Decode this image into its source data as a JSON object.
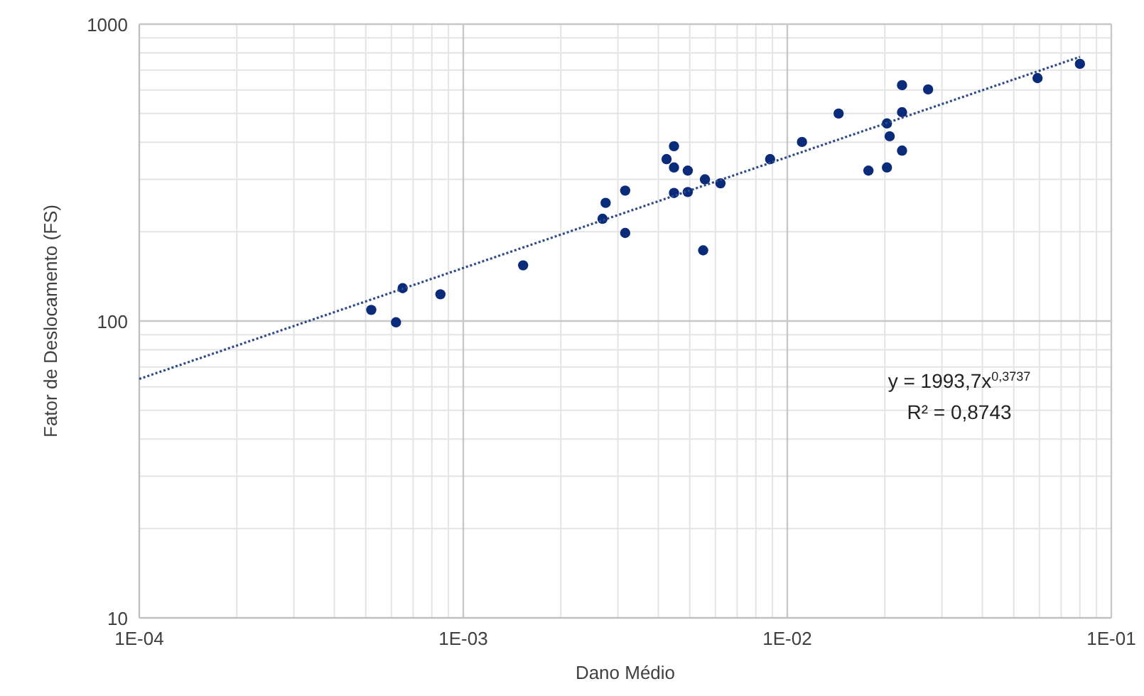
{
  "chart_data": {
    "type": "scatter",
    "xlabel": "Dano Médio",
    "ylabel": "Fator de Deslocamento (FS)",
    "log": "xy",
    "grid": true,
    "xlim": [
      0.0001,
      0.1
    ],
    "ylim": [
      10,
      1000
    ],
    "xticks": [
      {
        "value": 0.0001,
        "label": "1E-04"
      },
      {
        "value": 0.001,
        "label": "1E-03"
      },
      {
        "value": 0.01,
        "label": "1E-02"
      },
      {
        "value": 0.1,
        "label": "1E-01"
      }
    ],
    "yticks": [
      10,
      100,
      1000
    ],
    "series": [
      {
        "color": "#0a2a7a",
        "marker": "circle",
        "x": [
          0.00052,
          0.00062,
          0.00065,
          0.00085,
          0.00153,
          0.00269,
          0.00275,
          0.00316,
          0.00316,
          0.00424,
          0.00447,
          0.00447,
          0.00447,
          0.00493,
          0.00493,
          0.00557,
          0.0055,
          0.00622,
          0.00885,
          0.0111,
          0.0144,
          0.0178,
          0.0203,
          0.0203,
          0.0207,
          0.0226,
          0.0226,
          0.0226,
          0.0272,
          0.0592,
          0.08
        ],
        "values": [
          109,
          99,
          129,
          123,
          154,
          221,
          250,
          198,
          275,
          351,
          388,
          329,
          270,
          321,
          272,
          300,
          173,
          291,
          351,
          401,
          500,
          321,
          329,
          463,
          419,
          623,
          505,
          375,
          603,
          658,
          735
        ]
      },
      {
        "type": "line",
        "color": "#2e4a8c",
        "marker": "none",
        "line_style": "dotted",
        "x": [
          0.0001,
          0.08
        ],
        "values": [
          63.8,
          776
        ]
      }
    ],
    "annotations": [
      "y = 1993,7x$^{0,3737}$",
      "R² = 0,8743"
    ]
  }
}
